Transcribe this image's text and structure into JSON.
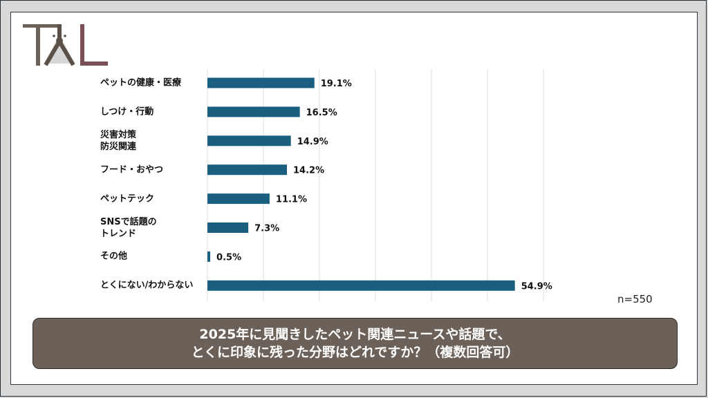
{
  "logo": {
    "text": "TAL"
  },
  "chart_data": {
    "type": "bar",
    "orientation": "horizontal",
    "categories": [
      "ペットの健康・医療",
      "しつけ・行動",
      "災害対策\n防災関連",
      "フード・おやつ",
      "ペットテック",
      "SNSで話題の\nトレンド",
      "その他",
      "とくにない/わからない"
    ],
    "values": [
      19.1,
      16.5,
      14.9,
      14.2,
      11.1,
      7.3,
      0.5,
      54.9
    ],
    "value_labels": [
      "19.1%",
      "16.5%",
      "14.9%",
      "14.2%",
      "11.1%",
      "7.3%",
      "0.5%",
      "54.9%"
    ],
    "xlim": [
      0,
      60
    ],
    "grid_step": 10,
    "grid": true,
    "bar_color": "#1a5e80",
    "annotation": "n=550",
    "title": "2025年に見聞きしたペット関連ニュースや話題で、\nとくに印象に残った分野はどれですか？（複数回答可）"
  },
  "title_lines": [
    "2025年に見聞きしたペット関連ニュースや話題で、",
    "とくに印象に残った分野はどれですか？（複数回答可）"
  ]
}
